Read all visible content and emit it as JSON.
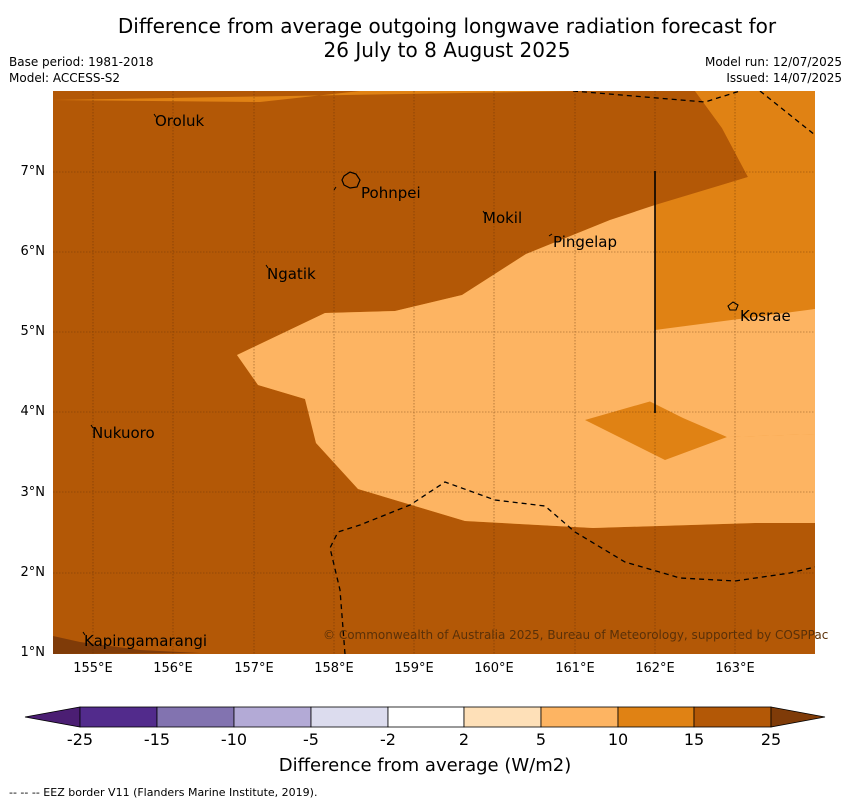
{
  "title_line1": "Difference from average outgoing longwave radiation forecast for",
  "title_line2": "26 July to 8 August 2025",
  "base_period": "Base period: 1981-2018",
  "model": "Model: ACCESS-S2",
  "model_run": "Model run: 12/07/2025",
  "issued": "Issued: 14/07/2025",
  "lat_labels": [
    "7°N",
    "6°N",
    "5°N",
    "4°N",
    "3°N",
    "2°N",
    "1°N"
  ],
  "lon_labels": [
    "155°E",
    "156°E",
    "157°E",
    "158°E",
    "159°E",
    "160°E",
    "161°E",
    "162°E",
    "163°E"
  ],
  "places": {
    "oroluk": "Oroluk",
    "pohnpei": "Pohnpei",
    "mokil": "Mokil",
    "pingelap": "Pingelap",
    "ngatik": "Ngatik",
    "kosrae": "Kosrae",
    "nukuoro": "Nukuoro",
    "kapingamarangi": "Kapingamarangi"
  },
  "copyright": "© Commonwealth of Australia 2025, Bureau of Meteorology, supported by COSPPac",
  "colorbar": {
    "ticks": [
      "-25",
      "-15",
      "-10",
      "-5",
      "-2",
      "2",
      "5",
      "10",
      "15",
      "25"
    ],
    "colors": [
      "#4b1e73",
      "#522b8c",
      "#8273b0",
      "#b3aad6",
      "#dcdcee",
      "#ffffff",
      "#fee0b8",
      "#fdb462",
      "#e08214",
      "#b35806",
      "#7f3b08"
    ],
    "title": "Difference from average (W/m2)"
  },
  "footnote": "--  --  -- EEZ border V11 (Flanders Marine Institute, 2019)."
}
